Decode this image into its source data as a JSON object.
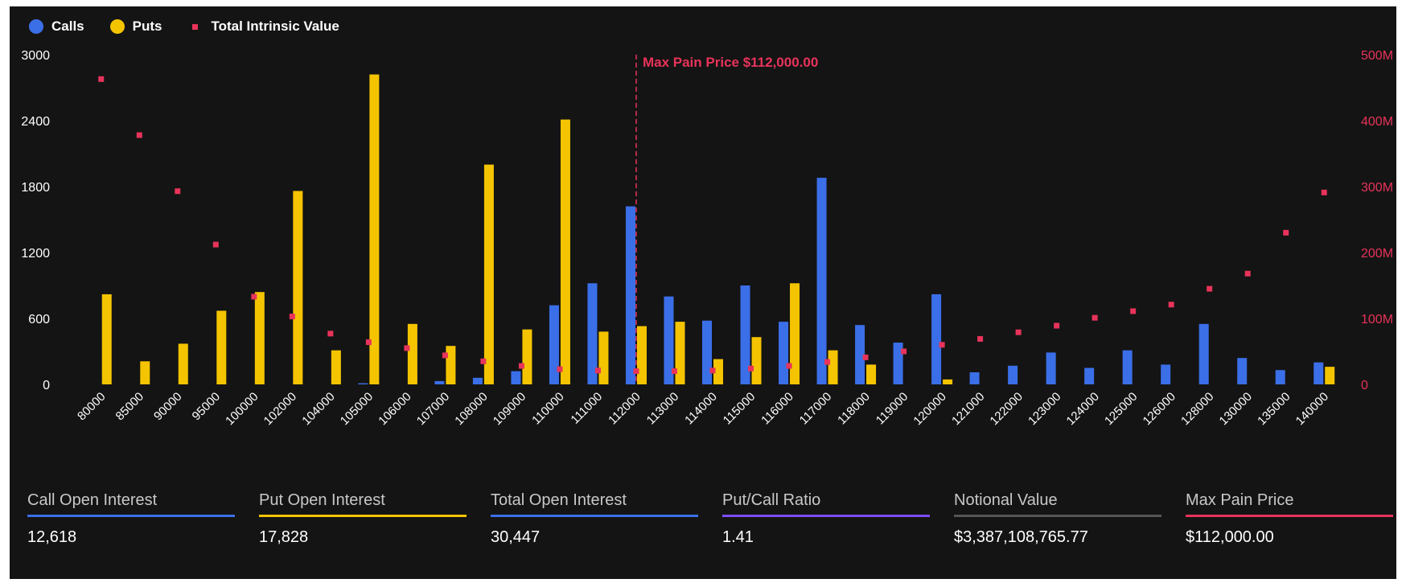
{
  "colors": {
    "calls": "#3b6fe8",
    "puts": "#f5c400",
    "intrinsic": "#e8335a",
    "max_pain": "#e8335a",
    "axis_text": "#ffffff",
    "right_axis_text": "#e8335a",
    "ratio_line": "#7c4dff",
    "notional_line": "#555555"
  },
  "legend": [
    {
      "label": "Calls",
      "color": "#3b6fe8",
      "marker": "circle"
    },
    {
      "label": "Puts",
      "color": "#f5c400",
      "marker": "circle"
    },
    {
      "label": "Total Intrinsic Value",
      "color": "#e8335a",
      "marker": "square"
    }
  ],
  "chart_data": {
    "type": "bar",
    "categories": [
      "80000",
      "85000",
      "90000",
      "95000",
      "100000",
      "102000",
      "104000",
      "105000",
      "106000",
      "107000",
      "108000",
      "109000",
      "110000",
      "111000",
      "112000",
      "113000",
      "114000",
      "115000",
      "116000",
      "117000",
      "118000",
      "119000",
      "120000",
      "121000",
      "122000",
      "123000",
      "124000",
      "125000",
      "126000",
      "128000",
      "130000",
      "135000",
      "140000"
    ],
    "series": [
      {
        "name": "Calls",
        "axis": "left",
        "values": [
          0,
          0,
          0,
          0,
          0,
          0,
          0,
          10,
          0,
          30,
          60,
          120,
          720,
          920,
          1620,
          800,
          580,
          900,
          570,
          1880,
          540,
          380,
          820,
          110,
          170,
          290,
          150,
          310,
          180,
          550,
          240,
          130,
          200
        ]
      },
      {
        "name": "Puts",
        "axis": "left",
        "values": [
          820,
          210,
          370,
          670,
          840,
          1760,
          310,
          2820,
          550,
          350,
          2000,
          500,
          2410,
          480,
          530,
          570,
          230,
          430,
          920,
          310,
          180,
          0,
          45,
          0,
          0,
          0,
          0,
          0,
          0,
          0,
          0,
          0,
          160
        ]
      },
      {
        "name": "Total Intrinsic Value",
        "axis": "right",
        "type": "scatter",
        "values": [
          463,
          378,
          293,
          212,
          133,
          103,
          77,
          64,
          55,
          44,
          35,
          28,
          23,
          21,
          20,
          20,
          21,
          24,
          28,
          34,
          41,
          50,
          60,
          69,
          79,
          89,
          101,
          111,
          121,
          145,
          168,
          230,
          291
        ]
      }
    ],
    "left_axis": {
      "ticks": [
        "0",
        "600",
        "1200",
        "1800",
        "2400",
        "3000"
      ],
      "range": [
        0,
        3000
      ]
    },
    "right_axis": {
      "ticks": [
        "0",
        "100M",
        "200M",
        "300M",
        "400M",
        "500M"
      ],
      "range": [
        0,
        500
      ]
    },
    "annotation": {
      "label": "Max Pain Price $112,000.00",
      "category": "112000"
    },
    "legend_position": "top-left",
    "grid": false
  },
  "stats": [
    {
      "label": "Call Open Interest",
      "value": "12,618",
      "color": "#3b6fe8"
    },
    {
      "label": "Put Open Interest",
      "value": "17,828",
      "color": "#f5c400"
    },
    {
      "label": "Total Open Interest",
      "value": "30,447",
      "color": "#3b6fe8"
    },
    {
      "label": "Put/Call Ratio",
      "value": "1.41",
      "color": "#7c4dff"
    },
    {
      "label": "Notional Value",
      "value": "$3,387,108,765.77",
      "color": "#555555"
    },
    {
      "label": "Max Pain Price",
      "value": "$112,000.00",
      "color": "#e8335a"
    }
  ]
}
